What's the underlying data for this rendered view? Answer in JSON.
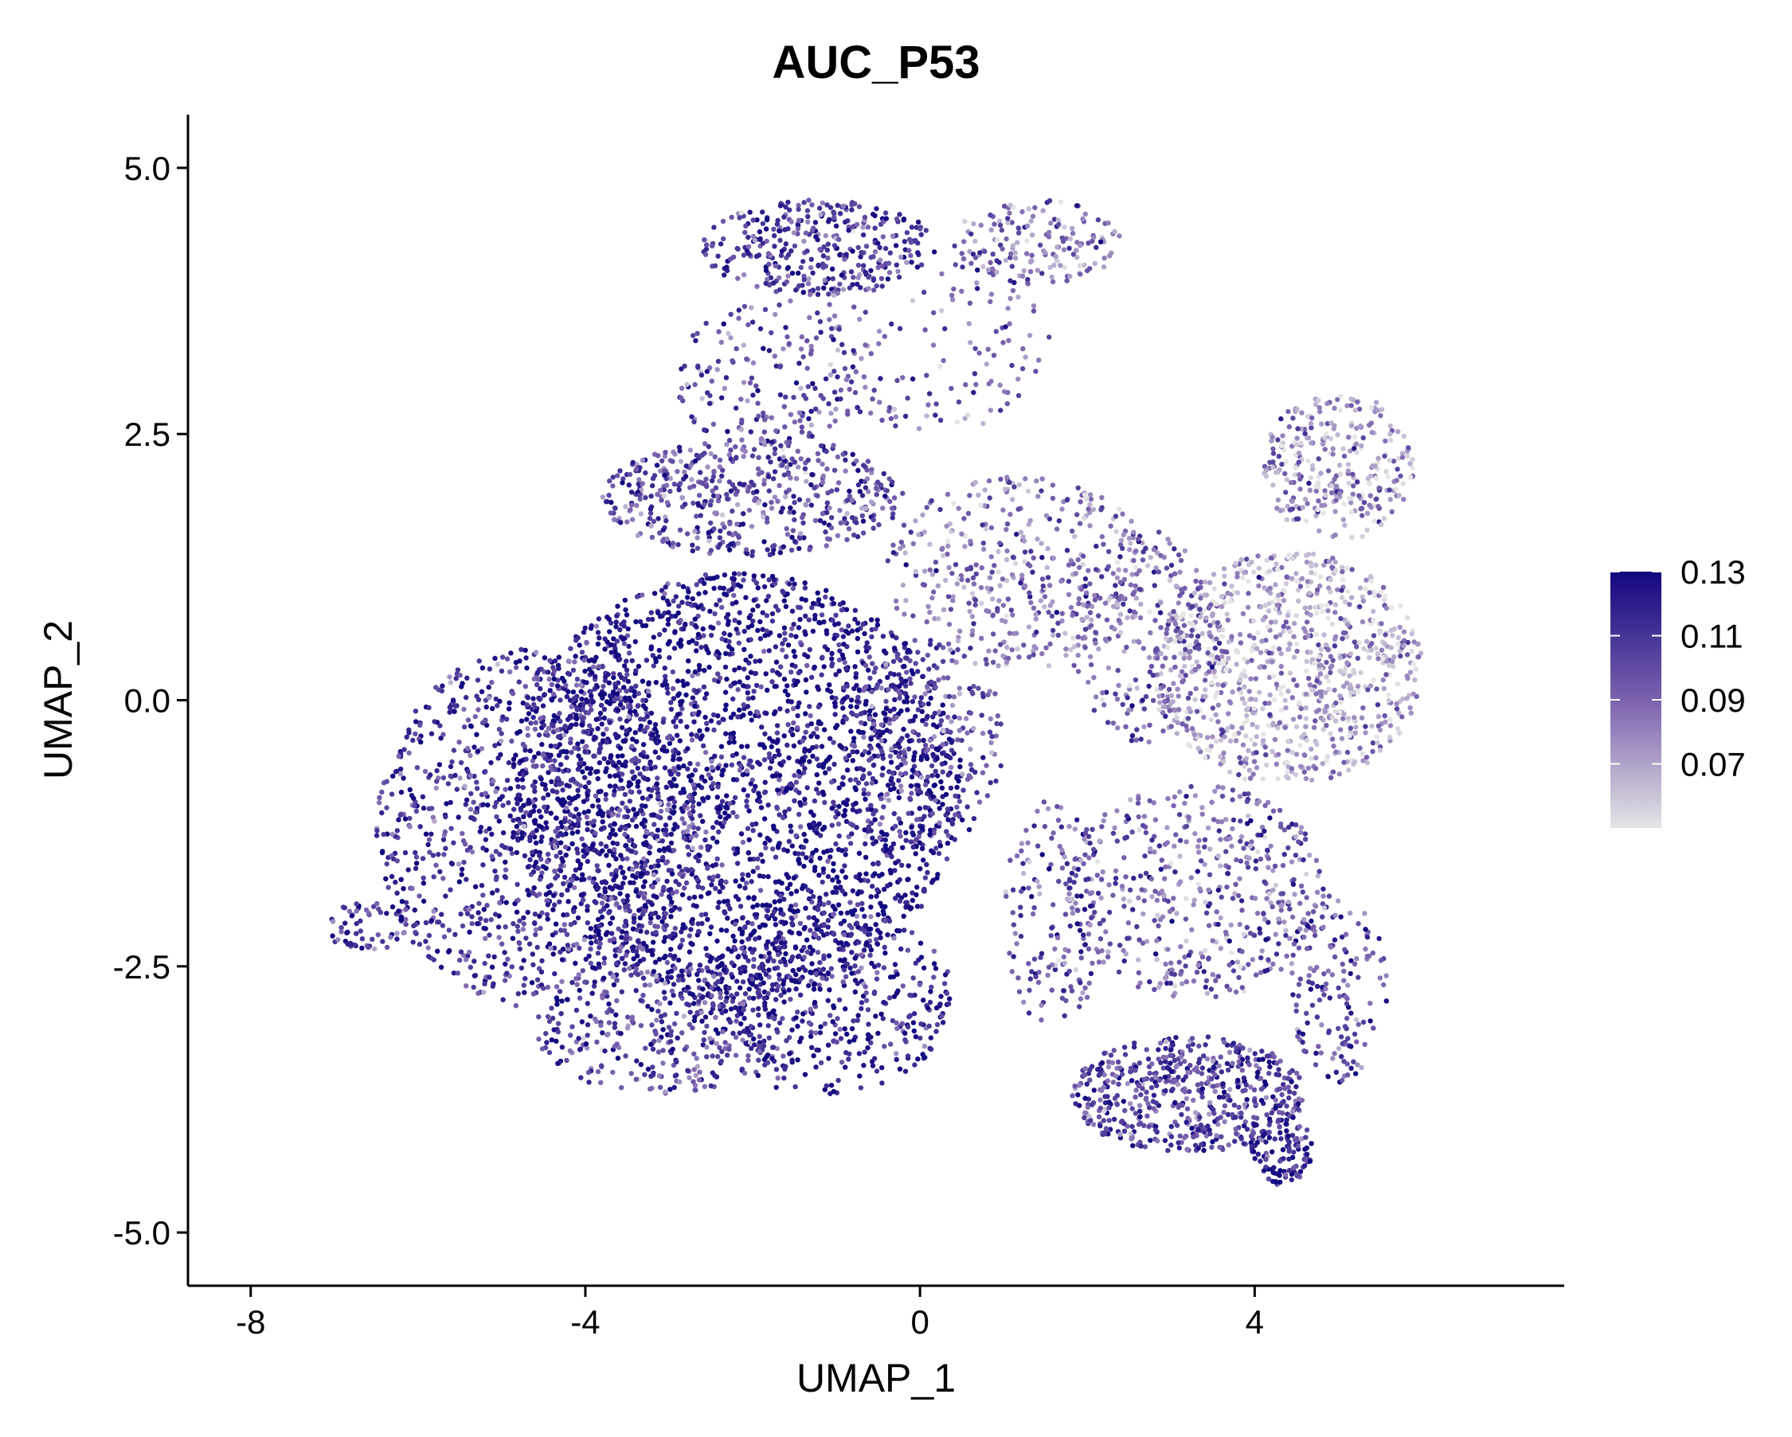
{
  "chart_data": {
    "type": "scatter",
    "title": "AUC_P53",
    "xlabel": "UMAP_1",
    "ylabel": "UMAP_2",
    "xlim": [
      -8.75,
      7.7
    ],
    "ylim": [
      -5.5,
      5.5
    ],
    "x_ticks": [
      -8,
      -4,
      0,
      4
    ],
    "x_tick_labels": [
      "-8",
      "-4",
      "0",
      "4"
    ],
    "y_ticks": [
      5.0,
      2.5,
      0.0,
      -2.5,
      -5.0
    ],
    "y_tick_labels": [
      "5.0",
      "2.5",
      "0.0",
      "-2.5",
      "-5.0"
    ],
    "grid": false,
    "color_scale": {
      "name": "AUC_P53",
      "low_color": "#e5e5e5",
      "mid_color": "#7b62ae",
      "high_color": "#12087f",
      "min": 0.05,
      "max": 0.13,
      "ticks": [
        0.13,
        0.11,
        0.09,
        0.07
      ],
      "tick_labels": [
        "0.13",
        "0.11",
        "0.09",
        "0.07"
      ],
      "legend_position": "right"
    },
    "regions": [
      {
        "cx": -2.2,
        "cy": -0.8,
        "rx": 2.7,
        "ry": 2.0,
        "n": 2600,
        "value": 0.125
      },
      {
        "cx": -4.6,
        "cy": -1.2,
        "rx": 1.9,
        "ry": 1.7,
        "n": 1100,
        "value": 0.112
      },
      {
        "cx": -6.6,
        "cy": -2.1,
        "rx": 0.55,
        "ry": 0.25,
        "n": 60,
        "value": 0.105
      },
      {
        "cx": -1.2,
        "cy": -2.8,
        "rx": 1.6,
        "ry": 0.9,
        "n": 500,
        "value": 0.12
      },
      {
        "cx": -3.1,
        "cy": -3.1,
        "rx": 1.5,
        "ry": 0.6,
        "n": 300,
        "value": 0.105
      },
      {
        "cx": -2.0,
        "cy": 1.9,
        "rx": 1.8,
        "ry": 0.55,
        "n": 500,
        "value": 0.1
      },
      {
        "cx": -1.2,
        "cy": 4.25,
        "rx": 1.4,
        "ry": 0.45,
        "n": 350,
        "value": 0.108
      },
      {
        "cx": 1.4,
        "cy": 4.3,
        "rx": 1.0,
        "ry": 0.4,
        "n": 160,
        "value": 0.085
      },
      {
        "cx": -1.7,
        "cy": 3.0,
        "rx": 1.2,
        "ry": 0.8,
        "n": 200,
        "value": 0.1
      },
      {
        "cx": 0.2,
        "cy": 3.4,
        "rx": 1.4,
        "ry": 0.9,
        "n": 120,
        "value": 0.09
      },
      {
        "cx": 1.2,
        "cy": 1.2,
        "rx": 1.6,
        "ry": 0.9,
        "n": 400,
        "value": 0.085
      },
      {
        "cx": 0.1,
        "cy": -0.4,
        "rx": 0.9,
        "ry": 1.0,
        "n": 250,
        "value": 0.1
      },
      {
        "cx": 4.4,
        "cy": 0.3,
        "rx": 1.6,
        "ry": 1.1,
        "n": 900,
        "value": 0.07
      },
      {
        "cx": 5.0,
        "cy": 2.2,
        "rx": 0.9,
        "ry": 0.7,
        "n": 300,
        "value": 0.075
      },
      {
        "cx": 2.7,
        "cy": 0.6,
        "rx": 0.9,
        "ry": 1.0,
        "n": 250,
        "value": 0.09
      },
      {
        "cx": 3.3,
        "cy": -1.8,
        "rx": 1.6,
        "ry": 1.0,
        "n": 500,
        "value": 0.09
      },
      {
        "cx": 3.2,
        "cy": -3.7,
        "rx": 1.4,
        "ry": 0.55,
        "n": 550,
        "value": 0.105
      },
      {
        "cx": 4.3,
        "cy": -4.2,
        "rx": 0.4,
        "ry": 0.35,
        "n": 120,
        "value": 0.115
      },
      {
        "cx": 5.0,
        "cy": -2.7,
        "rx": 0.6,
        "ry": 0.9,
        "n": 150,
        "value": 0.1
      },
      {
        "cx": 1.6,
        "cy": -2.0,
        "rx": 0.6,
        "ry": 1.1,
        "n": 150,
        "value": 0.095
      }
    ]
  }
}
